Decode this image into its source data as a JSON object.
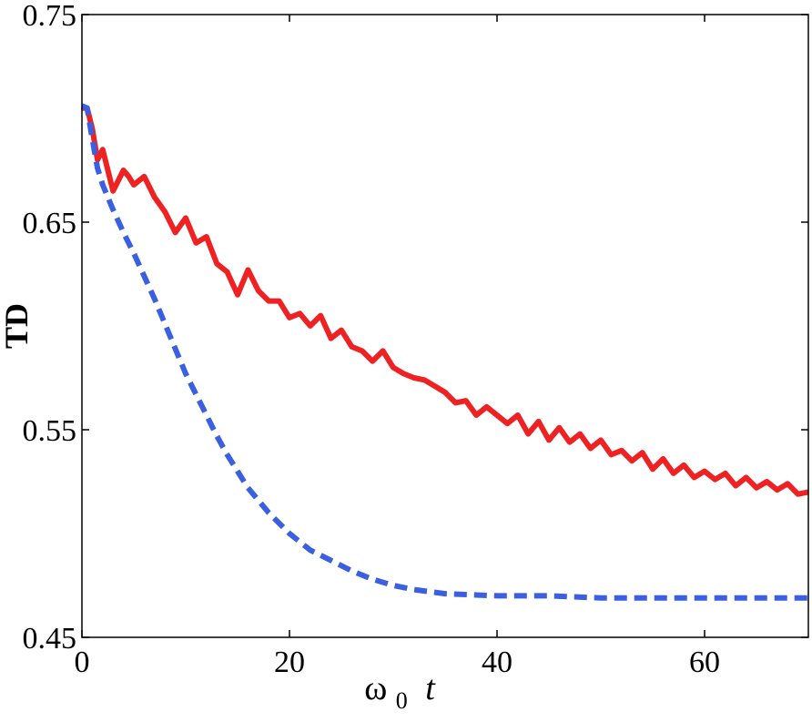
{
  "chart_data": {
    "type": "line",
    "title": "",
    "xlabel": {
      "symbol": "ω",
      "subscript": "0",
      "variable": "t"
    },
    "ylabel": "TD",
    "xlim": [
      0,
      70
    ],
    "ylim": [
      0.45,
      0.75
    ],
    "xticks": [
      0,
      20,
      40,
      60
    ],
    "xtick_labels": [
      "0",
      "20",
      "40",
      "60"
    ],
    "yticks": [
      0.45,
      0.55,
      0.65,
      0.75
    ],
    "ytick_labels": [
      "0.45",
      "0.55",
      "0.65",
      "0.75"
    ],
    "grid": false,
    "legend": "none",
    "series": [
      {
        "style": "solid",
        "color": "#ee2222",
        "x": [
          0,
          0.5,
          1,
          1.5,
          2,
          2.5,
          3,
          3.5,
          4,
          4.5,
          5,
          6,
          7,
          8,
          9,
          10,
          11,
          12,
          13,
          14,
          15,
          16,
          17,
          18,
          19,
          20,
          21,
          22,
          23,
          24,
          25,
          26,
          27,
          28,
          29,
          30,
          31,
          32,
          33,
          34,
          35,
          36,
          37,
          38,
          39,
          40,
          41,
          42,
          43,
          44,
          45,
          46,
          47,
          48,
          49,
          50,
          51,
          52,
          53,
          54,
          55,
          56,
          57,
          58,
          59,
          60,
          61,
          62,
          63,
          64,
          65,
          66,
          67,
          68,
          69,
          70
        ],
        "y": [
          0.705,
          0.705,
          0.695,
          0.68,
          0.685,
          0.675,
          0.665,
          0.67,
          0.675,
          0.672,
          0.668,
          0.672,
          0.662,
          0.655,
          0.645,
          0.652,
          0.64,
          0.643,
          0.63,
          0.626,
          0.615,
          0.627,
          0.617,
          0.612,
          0.612,
          0.604,
          0.606,
          0.6,
          0.605,
          0.594,
          0.598,
          0.59,
          0.588,
          0.583,
          0.588,
          0.58,
          0.577,
          0.575,
          0.574,
          0.571,
          0.568,
          0.563,
          0.564,
          0.557,
          0.561,
          0.557,
          0.553,
          0.557,
          0.548,
          0.554,
          0.545,
          0.551,
          0.544,
          0.548,
          0.541,
          0.545,
          0.538,
          0.54,
          0.535,
          0.539,
          0.531,
          0.536,
          0.529,
          0.533,
          0.527,
          0.53,
          0.526,
          0.529,
          0.523,
          0.527,
          0.522,
          0.525,
          0.521,
          0.524,
          0.519,
          0.52
        ]
      },
      {
        "style": "dashed",
        "color": "#3a5fe0",
        "x": [
          0,
          0.5,
          1,
          1.5,
          2,
          3,
          4,
          5,
          6,
          7,
          8,
          9,
          10,
          11,
          12,
          13,
          14,
          15,
          16,
          17,
          18,
          19,
          20,
          21,
          22,
          24,
          26,
          28,
          30,
          32,
          35,
          40,
          45,
          50,
          55,
          60,
          65,
          70
        ],
        "y": [
          0.706,
          0.705,
          0.69,
          0.676,
          0.668,
          0.656,
          0.645,
          0.635,
          0.624,
          0.613,
          0.601,
          0.589,
          0.577,
          0.567,
          0.557,
          0.547,
          0.538,
          0.53,
          0.522,
          0.516,
          0.51,
          0.505,
          0.5,
          0.496,
          0.492,
          0.487,
          0.482,
          0.478,
          0.475,
          0.473,
          0.471,
          0.47,
          0.47,
          0.469,
          0.469,
          0.469,
          0.469,
          0.469
        ]
      }
    ]
  }
}
